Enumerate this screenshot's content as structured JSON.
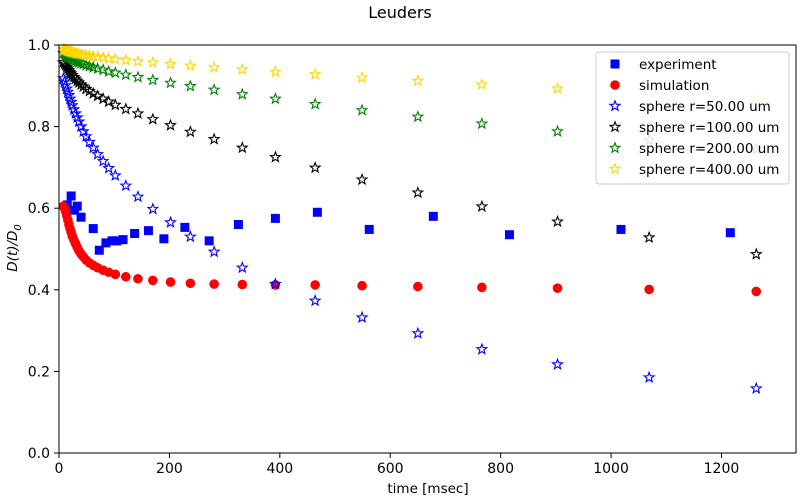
{
  "chart_data": {
    "type": "scatter",
    "title": "Leuders",
    "xlabel": "time [msec]",
    "ylabel": "D(t)/D_0",
    "xlim": [
      0,
      1335
    ],
    "ylim": [
      0,
      1.0
    ],
    "xticks": [
      0,
      200,
      400,
      600,
      800,
      1000,
      1200
    ],
    "yticks": [
      0.0,
      0.2,
      0.4,
      0.6,
      0.8,
      1.0
    ],
    "grid": false,
    "legend_position": "top-right",
    "series": [
      {
        "name": "experiment",
        "marker": "square",
        "color": "#0000ff",
        "x": [
          15,
          22,
          28,
          33,
          40,
          62,
          73,
          85,
          96,
          105,
          116,
          137,
          162,
          190,
          228,
          272,
          325,
          392,
          468,
          562,
          678,
          816,
          1018,
          1216
        ],
        "y": [
          0.608,
          0.63,
          0.595,
          0.605,
          0.578,
          0.55,
          0.497,
          0.515,
          0.52,
          0.52,
          0.523,
          0.538,
          0.545,
          0.525,
          0.553,
          0.52,
          0.56,
          0.575,
          0.59,
          0.548,
          0.58,
          0.535,
          0.548,
          0.54
        ]
      },
      {
        "name": "simulation",
        "marker": "circle",
        "color": "#ff0000",
        "x": [
          8,
          10,
          12,
          14,
          16,
          18,
          20,
          22,
          24,
          27,
          30,
          33,
          36,
          40,
          44,
          49,
          55,
          62,
          70,
          80,
          90,
          102,
          121,
          143,
          170,
          202,
          238,
          281,
          332,
          392,
          464,
          549,
          650,
          766,
          903,
          1069,
          1263
        ],
        "y": [
          0.605,
          0.6,
          0.592,
          0.582,
          0.571,
          0.56,
          0.55,
          0.541,
          0.532,
          0.522,
          0.513,
          0.504,
          0.496,
          0.488,
          0.481,
          0.473,
          0.466,
          0.46,
          0.454,
          0.448,
          0.443,
          0.438,
          0.432,
          0.427,
          0.423,
          0.419,
          0.416,
          0.414,
          0.413,
          0.412,
          0.412,
          0.41,
          0.408,
          0.406,
          0.404,
          0.401,
          0.396
        ]
      },
      {
        "name": "sphere r=50.00 um",
        "marker": "star",
        "color": "#0000ff",
        "x": [
          8,
          10,
          12,
          14,
          16,
          18,
          20,
          22,
          24,
          27,
          30,
          33,
          36,
          40,
          44,
          49,
          55,
          62,
          70,
          80,
          90,
          102,
          121,
          143,
          170,
          202,
          238,
          281,
          332,
          392,
          464,
          549,
          650,
          766,
          903,
          1069,
          1263
        ],
        "y": [
          0.918,
          0.91,
          0.901,
          0.893,
          0.885,
          0.877,
          0.868,
          0.86,
          0.852,
          0.842,
          0.832,
          0.822,
          0.812,
          0.8,
          0.788,
          0.776,
          0.762,
          0.748,
          0.732,
          0.715,
          0.698,
          0.68,
          0.655,
          0.628,
          0.598,
          0.565,
          0.53,
          0.493,
          0.454,
          0.414,
          0.373,
          0.332,
          0.293,
          0.254,
          0.217,
          0.185,
          0.158
        ]
      },
      {
        "name": "sphere r=100.00 um",
        "marker": "star",
        "color": "#000000",
        "x": [
          8,
          10,
          12,
          14,
          16,
          18,
          20,
          22,
          24,
          27,
          30,
          33,
          36,
          40,
          44,
          49,
          55,
          62,
          70,
          80,
          90,
          102,
          121,
          143,
          170,
          202,
          238,
          281,
          332,
          392,
          464,
          549,
          650,
          766,
          903,
          1069,
          1263
        ],
        "y": [
          0.958,
          0.954,
          0.95,
          0.946,
          0.942,
          0.938,
          0.934,
          0.93,
          0.926,
          0.921,
          0.917,
          0.912,
          0.908,
          0.903,
          0.898,
          0.892,
          0.887,
          0.881,
          0.875,
          0.868,
          0.861,
          0.853,
          0.843,
          0.832,
          0.818,
          0.803,
          0.787,
          0.769,
          0.748,
          0.725,
          0.699,
          0.67,
          0.638,
          0.604,
          0.567,
          0.528,
          0.487
        ]
      },
      {
        "name": "sphere r=200.00 um",
        "marker": "star",
        "color": "#008000",
        "x": [
          8,
          10,
          12,
          14,
          16,
          18,
          20,
          22,
          24,
          27,
          30,
          33,
          36,
          40,
          44,
          49,
          55,
          62,
          70,
          80,
          90,
          102,
          121,
          143,
          170,
          202,
          238,
          281,
          332,
          392,
          464,
          549,
          650,
          766,
          903,
          1069,
          1263
        ],
        "y": [
          0.98,
          0.978,
          0.976,
          0.974,
          0.972,
          0.97,
          0.969,
          0.967,
          0.965,
          0.963,
          0.961,
          0.959,
          0.957,
          0.955,
          0.953,
          0.95,
          0.948,
          0.945,
          0.942,
          0.939,
          0.935,
          0.932,
          0.927,
          0.921,
          0.914,
          0.907,
          0.899,
          0.89,
          0.879,
          0.868,
          0.855,
          0.84,
          0.824,
          0.807,
          0.788,
          0.767,
          0.745
        ]
      },
      {
        "name": "sphere r=400.00 um",
        "marker": "star",
        "color": "#ffd700",
        "x": [
          8,
          10,
          12,
          14,
          16,
          18,
          20,
          22,
          24,
          27,
          30,
          33,
          36,
          40,
          44,
          49,
          55,
          62,
          70,
          80,
          90,
          102,
          121,
          143,
          170,
          202,
          238,
          281,
          332,
          392,
          464,
          549,
          650,
          766,
          903,
          1069,
          1263
        ],
        "y": [
          0.99,
          0.989,
          0.988,
          0.987,
          0.986,
          0.985,
          0.984,
          0.983,
          0.982,
          0.981,
          0.98,
          0.979,
          0.978,
          0.977,
          0.976,
          0.975,
          0.974,
          0.972,
          0.971,
          0.969,
          0.967,
          0.965,
          0.963,
          0.96,
          0.957,
          0.953,
          0.949,
          0.945,
          0.94,
          0.934,
          0.928,
          0.92,
          0.912,
          0.903,
          0.893,
          0.882,
          0.87
        ]
      }
    ]
  }
}
